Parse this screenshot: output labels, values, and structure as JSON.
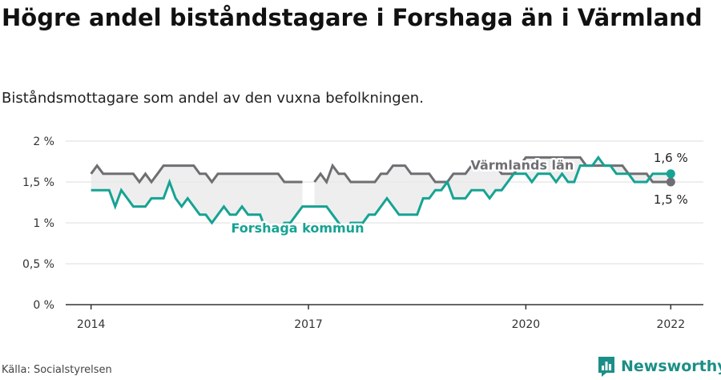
{
  "title": "Högre andel biståndstagare i Forshaga än i Värmland",
  "subtitle": "Biståndsmottagare som andel av den vuxna befolkningen.",
  "source": "Källa: Socialstyrelsen",
  "brand": "Newsworthy",
  "colors": {
    "lan": "#6f6e72",
    "kommun": "#16a393",
    "fill": "#e8e8e8",
    "grid": "#dcdcdc",
    "axis": "#333333",
    "brand": "#1b8f87"
  },
  "chart_data": {
    "type": "line",
    "ylim": [
      0,
      2
    ],
    "yticks": [
      0,
      0.5,
      1,
      1.5,
      2
    ],
    "ytick_labels": [
      "0 %",
      "0,5 %",
      "1 %",
      "1,5 %",
      "2 %"
    ],
    "xlim": [
      2013.65,
      2022.45
    ],
    "xticks": [
      2014,
      2017,
      2020,
      2022
    ],
    "xtick_labels": [
      "2014",
      "2017",
      "2020",
      "2022"
    ],
    "grid": true,
    "series": [
      {
        "name": "Värmlands län",
        "key": "lan",
        "end_label": "1,5 %",
        "x": [
          2014,
          2014.083,
          2014.167,
          2014.25,
          2014.333,
          2014.417,
          2014.5,
          2014.583,
          2014.667,
          2014.75,
          2014.833,
          2014.917,
          2015,
          2015.083,
          2015.167,
          2015.25,
          2015.333,
          2015.417,
          2015.5,
          2015.583,
          2015.667,
          2015.75,
          2015.833,
          2015.917,
          2016,
          2016.083,
          2016.167,
          2016.25,
          2016.333,
          2016.417,
          2016.5,
          2016.583,
          2016.667,
          2016.75,
          2016.833,
          2016.917,
          2017,
          2017.083,
          2017.167,
          2017.25,
          2017.333,
          2017.417,
          2017.5,
          2017.583,
          2017.667,
          2017.75,
          2017.833,
          2017.917,
          2018,
          2018.083,
          2018.167,
          2018.25,
          2018.333,
          2018.417,
          2018.5,
          2018.583,
          2018.667,
          2018.75,
          2018.833,
          2018.917,
          2019,
          2019.083,
          2019.167,
          2019.25,
          2019.333,
          2019.417,
          2019.5,
          2019.583,
          2019.667,
          2019.75,
          2019.833,
          2019.917,
          2020,
          2020.083,
          2020.167,
          2020.25,
          2020.333,
          2020.417,
          2020.5,
          2020.583,
          2020.667,
          2020.75,
          2020.833,
          2020.917,
          2021,
          2021.083,
          2021.167,
          2021.25,
          2021.333,
          2021.417,
          2021.5,
          2021.583,
          2021.667,
          2021.75,
          2021.833,
          2021.917,
          2022
        ],
        "y": [
          1.6,
          1.7,
          1.6,
          1.6,
          1.6,
          1.6,
          1.6,
          1.6,
          1.5,
          1.6,
          1.5,
          1.6,
          1.7,
          1.7,
          1.7,
          1.7,
          1.7,
          1.7,
          1.6,
          1.6,
          1.5,
          1.6,
          1.6,
          1.6,
          1.6,
          1.6,
          1.6,
          1.6,
          1.6,
          1.6,
          1.6,
          1.6,
          1.5,
          1.5,
          1.5,
          1.5,
          null,
          1.5,
          1.6,
          1.5,
          1.7,
          1.6,
          1.6,
          1.5,
          1.5,
          1.5,
          1.5,
          1.5,
          1.6,
          1.6,
          1.7,
          1.7,
          1.7,
          1.6,
          1.6,
          1.6,
          1.6,
          1.5,
          1.5,
          1.5,
          1.6,
          1.6,
          1.6,
          1.7,
          1.7,
          1.7,
          1.7,
          1.7,
          1.6,
          1.6,
          1.6,
          1.7,
          1.8,
          1.8,
          1.8,
          1.8,
          1.8,
          1.8,
          1.8,
          1.8,
          1.8,
          1.8,
          1.7,
          1.7,
          1.7,
          1.7,
          1.7,
          1.7,
          1.7,
          1.6,
          1.6,
          1.6,
          1.6,
          1.5,
          1.5,
          1.5,
          1.5
        ]
      },
      {
        "name": "Forshaga kommun",
        "key": "kommun",
        "end_label": "1,6 %",
        "x": [
          2014,
          2014.083,
          2014.167,
          2014.25,
          2014.333,
          2014.417,
          2014.5,
          2014.583,
          2014.667,
          2014.75,
          2014.833,
          2014.917,
          2015,
          2015.083,
          2015.167,
          2015.25,
          2015.333,
          2015.417,
          2015.5,
          2015.583,
          2015.667,
          2015.75,
          2015.833,
          2015.917,
          2016,
          2016.083,
          2016.167,
          2016.25,
          2016.333,
          2016.417,
          2016.5,
          2016.583,
          2016.667,
          2016.75,
          2016.833,
          2016.917,
          2017,
          2017.083,
          2017.167,
          2017.25,
          2017.333,
          2017.417,
          2017.5,
          2017.583,
          2017.667,
          2017.75,
          2017.833,
          2017.917,
          2018,
          2018.083,
          2018.167,
          2018.25,
          2018.333,
          2018.417,
          2018.5,
          2018.583,
          2018.667,
          2018.75,
          2018.833,
          2018.917,
          2019,
          2019.083,
          2019.167,
          2019.25,
          2019.333,
          2019.417,
          2019.5,
          2019.583,
          2019.667,
          2019.75,
          2019.833,
          2019.917,
          2020,
          2020.083,
          2020.167,
          2020.25,
          2020.333,
          2020.417,
          2020.5,
          2020.583,
          2020.667,
          2020.75,
          2020.833,
          2020.917,
          2021,
          2021.083,
          2021.167,
          2021.25,
          2021.333,
          2021.417,
          2021.5,
          2021.583,
          2021.667,
          2021.75,
          2021.833,
          2021.917,
          2022
        ],
        "y": [
          1.4,
          1.4,
          1.4,
          1.4,
          1.2,
          1.4,
          1.3,
          1.2,
          1.2,
          1.2,
          1.3,
          1.3,
          1.3,
          1.5,
          1.3,
          1.2,
          1.3,
          1.2,
          1.1,
          1.1,
          1.0,
          1.1,
          1.2,
          1.1,
          1.1,
          1.2,
          1.1,
          1.1,
          1.1,
          0.9,
          0.9,
          0.9,
          1.0,
          1.0,
          1.1,
          1.2,
          1.2,
          1.2,
          1.2,
          1.2,
          1.1,
          1.0,
          0.9,
          1.0,
          1.0,
          1.0,
          1.1,
          1.1,
          1.2,
          1.3,
          1.2,
          1.1,
          1.1,
          1.1,
          1.1,
          1.3,
          1.3,
          1.4,
          1.4,
          1.5,
          1.3,
          1.3,
          1.3,
          1.4,
          1.4,
          1.4,
          1.3,
          1.4,
          1.4,
          1.5,
          1.6,
          1.6,
          1.6,
          1.5,
          1.6,
          1.6,
          1.6,
          1.5,
          1.6,
          1.5,
          1.5,
          1.7,
          1.7,
          1.7,
          1.8,
          1.7,
          1.7,
          1.6,
          1.6,
          1.6,
          1.5,
          1.5,
          1.5,
          1.6,
          1.6,
          1.6,
          1.6
        ]
      }
    ]
  }
}
